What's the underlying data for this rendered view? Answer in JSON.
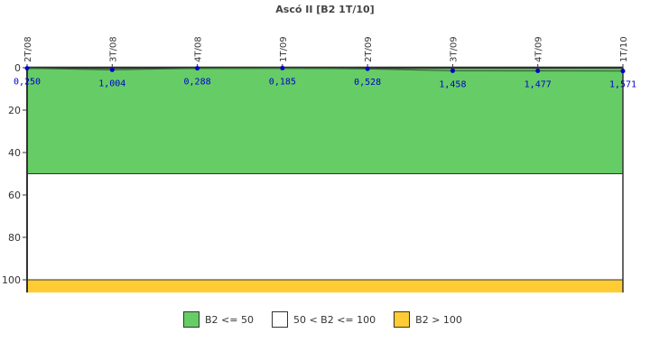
{
  "chart_data": {
    "type": "line",
    "title": "Ascó II [B2 1T/10]",
    "xlabel": "",
    "ylabel": "",
    "categories": [
      "2T/08",
      "3T/08",
      "4T/08",
      "1T/09",
      "2T/09",
      "3T/09",
      "4T/09",
      "1T/10"
    ],
    "series": [
      {
        "name": "B2",
        "values": [
          0.25,
          1.004,
          0.288,
          0.185,
          0.528,
          1.458,
          1.477,
          1.571
        ],
        "labels": [
          "0,250",
          "1,004",
          "0,288",
          "0,185",
          "0,528",
          "1,458",
          "1,477",
          "1,571"
        ],
        "color": "#0000cc"
      }
    ],
    "y_axis": {
      "inverted": true,
      "ylim": [
        0,
        106
      ],
      "ticks": [
        0,
        20,
        40,
        60,
        80,
        100
      ]
    },
    "bands": [
      {
        "label": "B2 <= 50",
        "from": 0,
        "to": 50,
        "color": "#66cc66"
      },
      {
        "label": "50 < B2 <= 100",
        "from": 50,
        "to": 100,
        "color": "#ffffff"
      },
      {
        "label": "B2 > 100",
        "from": 100,
        "to": 106,
        "color": "#ffcc33"
      }
    ],
    "grid": false,
    "legend_position": "bottom"
  },
  "title": "Ascó II [B2 1T/10]",
  "legend": [
    {
      "label": "B2 <= 50",
      "color": "#66cc66"
    },
    {
      "label": "50 < B2 <= 100",
      "color": "#ffffff"
    },
    {
      "label": "B2 > 100",
      "color": "#ffcc33"
    }
  ]
}
